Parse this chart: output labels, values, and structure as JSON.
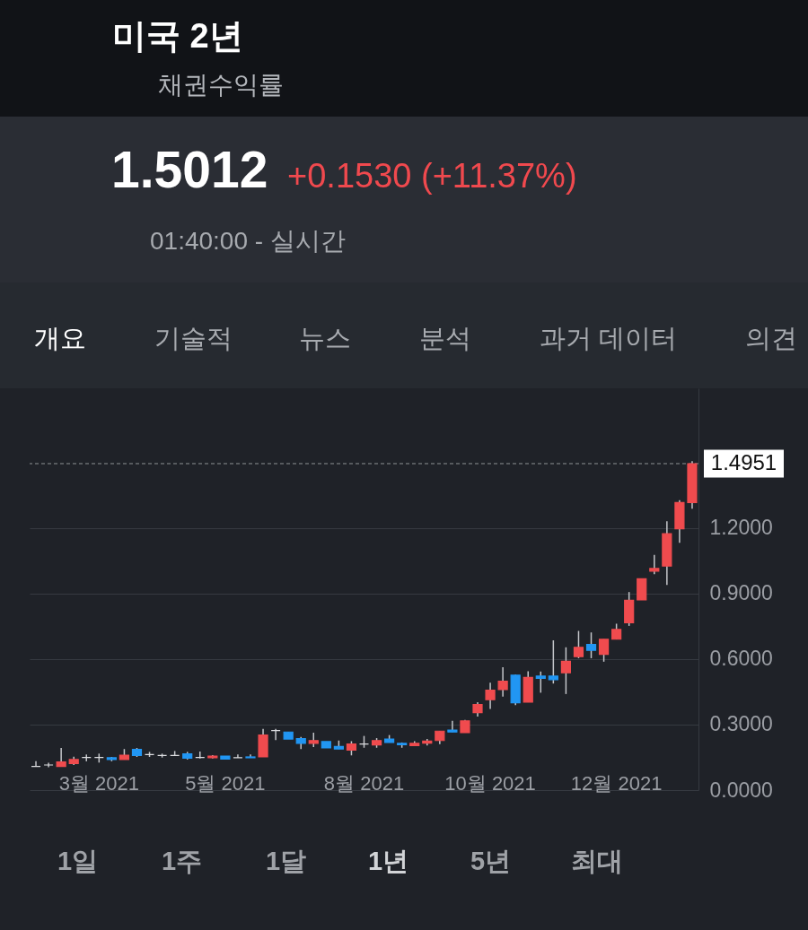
{
  "chart_data": {
    "type": "candlestick",
    "title": "미국 2년",
    "subtitle": "채권수익률",
    "categories": [
      null,
      null,
      null,
      null,
      null,
      "3월 2021",
      null,
      null,
      null,
      null,
      null,
      null,
      null,
      null,
      null,
      "5월 2021",
      null,
      null,
      null,
      null,
      null,
      null,
      null,
      null,
      null,
      null,
      "8월 2021",
      null,
      null,
      null,
      null,
      null,
      null,
      null,
      null,
      null,
      "10월 2021",
      null,
      null,
      null,
      null,
      null,
      null,
      null,
      null,
      null,
      "12월 2021",
      null,
      null,
      null,
      null,
      null,
      null
    ],
    "ohlc": [
      [
        0.108,
        0.132,
        0.108,
        0.108
      ],
      [
        0.115,
        0.125,
        0.105,
        0.115
      ],
      [
        0.108,
        0.193,
        0.108,
        0.129
      ],
      [
        0.122,
        0.153,
        0.115,
        0.14
      ],
      [
        0.149,
        0.163,
        0.132,
        0.149
      ],
      [
        0.149,
        0.167,
        0.126,
        0.149
      ],
      [
        0.148,
        0.152,
        0.132,
        0.14
      ],
      [
        0.14,
        0.188,
        0.14,
        0.16
      ],
      [
        0.186,
        0.193,
        0.152,
        0.159
      ],
      [
        0.163,
        0.175,
        0.152,
        0.163
      ],
      [
        0.159,
        0.167,
        0.149,
        0.159
      ],
      [
        0.159,
        0.179,
        0.159,
        0.159
      ],
      [
        0.166,
        0.175,
        0.14,
        0.146
      ],
      [
        0.149,
        0.177,
        0.145,
        0.149
      ],
      [
        0.148,
        0.16,
        0.145,
        0.156
      ],
      [
        0.156,
        0.156,
        0.142,
        0.142
      ],
      [
        0.148,
        0.163,
        0.148,
        0.148
      ],
      [
        0.152,
        0.163,
        0.148,
        0.148
      ],
      [
        0.152,
        0.28,
        0.152,
        0.252
      ],
      [
        0.273,
        0.28,
        0.229,
        0.273
      ],
      [
        0.266,
        0.266,
        0.234,
        0.234
      ],
      [
        0.236,
        0.243,
        0.188,
        0.214
      ],
      [
        0.214,
        0.263,
        0.197,
        0.227
      ],
      [
        0.222,
        0.222,
        0.193,
        0.193
      ],
      [
        0.2,
        0.227,
        0.188,
        0.188
      ],
      [
        0.183,
        0.224,
        0.159,
        0.211
      ],
      [
        0.211,
        0.248,
        0.194,
        0.211
      ],
      [
        0.207,
        0.238,
        0.194,
        0.227
      ],
      [
        0.234,
        0.252,
        0.218,
        0.218
      ],
      [
        0.214,
        0.218,
        0.194,
        0.208
      ],
      [
        0.204,
        0.224,
        0.204,
        0.214
      ],
      [
        0.215,
        0.234,
        0.204,
        0.224
      ],
      [
        0.227,
        0.27,
        0.211,
        0.27
      ],
      [
        0.275,
        0.317,
        0.266,
        0.266
      ],
      [
        0.263,
        0.321,
        0.263,
        0.317
      ],
      [
        0.355,
        0.403,
        0.337,
        0.392
      ],
      [
        0.414,
        0.492,
        0.372,
        0.458
      ],
      [
        0.46,
        0.563,
        0.428,
        0.499
      ],
      [
        0.526,
        0.529,
        0.389,
        0.4
      ],
      [
        0.403,
        0.544,
        0.403,
        0.516
      ],
      [
        0.522,
        0.543,
        0.446,
        0.512
      ],
      [
        0.522,
        0.686,
        0.488,
        0.506
      ],
      [
        0.537,
        0.654,
        0.44,
        0.59
      ],
      [
        0.611,
        0.729,
        0.604,
        0.654
      ],
      [
        0.667,
        0.722,
        0.604,
        0.64
      ],
      [
        0.622,
        0.691,
        0.588,
        0.691
      ],
      [
        0.691,
        0.762,
        0.691,
        0.736
      ],
      [
        0.766,
        0.907,
        0.752,
        0.869
      ],
      [
        0.871,
        0.968,
        0.871,
        0.968
      ],
      [
        1.003,
        1.077,
        0.989,
        1.015
      ],
      [
        1.026,
        1.231,
        0.94,
        1.174
      ],
      [
        1.197,
        1.328,
        1.133,
        1.317
      ],
      [
        1.317,
        1.506,
        1.289,
        1.495
      ]
    ],
    "colors": [
      "#dcdde0",
      "#dcdde0",
      "#f04b4e",
      "#f04b4e",
      "#dcdde0",
      "#dcdde0",
      "#2196f3",
      "#f04b4e",
      "#2196f3",
      "#dcdde0",
      "#dcdde0",
      "#dcdde0",
      "#2196f3",
      "#dcdde0",
      "#f04b4e",
      "#2196f3",
      "#dcdde0",
      "#2196f3",
      "#f04b4e",
      "#dcdde0",
      "#2196f3",
      "#2196f3",
      "#f04b4e",
      "#2196f3",
      "#2196f3",
      "#f04b4e",
      "#dcdde0",
      "#f04b4e",
      "#2196f3",
      "#2196f3",
      "#f04b4e",
      "#f04b4e",
      "#f04b4e",
      "#2196f3",
      "#f04b4e",
      "#f04b4e",
      "#f04b4e",
      "#f04b4e",
      "#2196f3",
      "#f04b4e",
      "#2196f3",
      "#2196f3",
      "#f04b4e",
      "#f04b4e",
      "#2196f3",
      "#f04b4e",
      "#f04b4e",
      "#f04b4e",
      "#f04b4e",
      "#f04b4e",
      "#f04b4e",
      "#f04b4e",
      "#f04b4e"
    ],
    "ylim": [
      0,
      1.84
    ],
    "yticks": [
      {
        "value": 0,
        "label": "0.0000"
      },
      {
        "value": 0.3,
        "label": "0.3000"
      },
      {
        "value": 0.6,
        "label": "0.6000"
      },
      {
        "value": 0.9,
        "label": "0.9000"
      },
      {
        "value": 1.2,
        "label": "1.2000"
      }
    ],
    "grid": "y",
    "ref_lines": [
      {
        "axis": "y",
        "value": 1.4951,
        "label": "1.4951",
        "color": "#8e9196",
        "line_style": "dashed"
      }
    ],
    "annotations": [
      "1.5012",
      "+0.1530 (+11.37%)",
      "01:40:00 - 실시간",
      "개요",
      "기술적",
      "뉴스",
      "분석",
      "과거 데이터",
      "의견",
      "1일",
      "1주",
      "1달",
      "1년",
      "5년",
      "최대"
    ]
  }
}
